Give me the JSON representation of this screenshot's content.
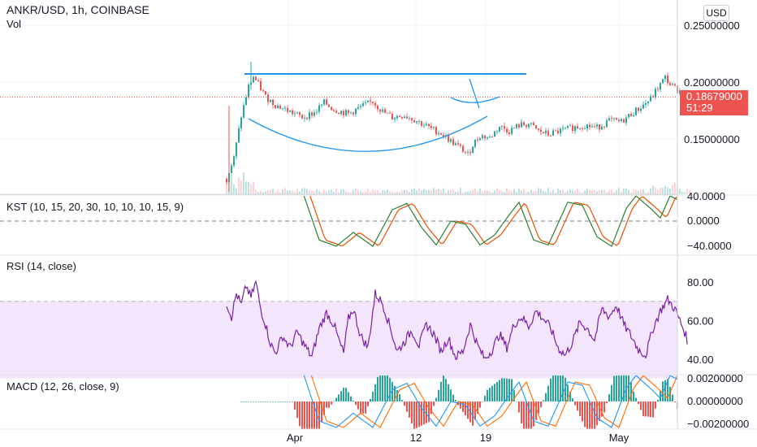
{
  "header": {
    "symbol": "ANKR/USD, 1h, COINBASE",
    "volume_label": "Vol",
    "currency": "USD"
  },
  "price_tag": {
    "price": "0.18679000",
    "countdown": "51:29"
  },
  "panes": {
    "kst": {
      "title": "KST (10, 15, 20, 30, 10, 10, 10, 15, 9)",
      "ticks": [
        "40.0000",
        "0.0000",
        "−40.0000"
      ]
    },
    "rsi": {
      "title": "RSI (14, close)",
      "ticks": [
        "80.00",
        "60.00",
        "40.00"
      ]
    },
    "macd": {
      "title": "MACD (12, 26, close, 9)",
      "ticks": [
        "0.00200000",
        "0.00000000",
        "−0.00200000"
      ]
    }
  },
  "colors": {
    "up": "#26a69a",
    "down": "#ef5350",
    "rsi": "#7b1fa2",
    "rsi_band": "#f3e5fc",
    "trendline": "#2196f3",
    "kst": "#2e7d32",
    "kst_signal": "#e65100",
    "macd": "#2196f3",
    "macd_signal": "#ff6d00"
  },
  "chart_data": [
    {
      "type": "candlestick",
      "title": "ANKR/USD, 1h, COINBASE",
      "x_ticks": [
        "Apr",
        "12",
        "19",
        "May"
      ],
      "y_ticks": [
        "0.25000000",
        "0.20000000",
        "0.15000000"
      ],
      "ylim": [
        0.11,
        0.26
      ],
      "last_price": 0.18679,
      "approx_close_path": [
        {
          "t": 0,
          "v": 0.115
        },
        {
          "t": 3,
          "v": 0.133
        },
        {
          "t": 6,
          "v": 0.17
        },
        {
          "t": 9,
          "v": 0.196
        },
        {
          "t": 11,
          "v": 0.205
        },
        {
          "t": 13,
          "v": 0.198
        },
        {
          "t": 16,
          "v": 0.187
        },
        {
          "t": 20,
          "v": 0.18
        },
        {
          "t": 25,
          "v": 0.175
        },
        {
          "t": 31,
          "v": 0.169
        },
        {
          "t": 36,
          "v": 0.173
        },
        {
          "t": 40,
          "v": 0.182
        },
        {
          "t": 44,
          "v": 0.176
        },
        {
          "t": 50,
          "v": 0.172
        },
        {
          "t": 55,
          "v": 0.178
        },
        {
          "t": 60,
          "v": 0.183
        },
        {
          "t": 64,
          "v": 0.174
        },
        {
          "t": 68,
          "v": 0.169
        },
        {
          "t": 73,
          "v": 0.171
        },
        {
          "t": 78,
          "v": 0.166
        },
        {
          "t": 83,
          "v": 0.16
        },
        {
          "t": 88,
          "v": 0.155
        },
        {
          "t": 92,
          "v": 0.148
        },
        {
          "t": 96,
          "v": 0.142
        },
        {
          "t": 99,
          "v": 0.136
        },
        {
          "t": 101,
          "v": 0.145
        },
        {
          "t": 104,
          "v": 0.153
        },
        {
          "t": 108,
          "v": 0.151
        },
        {
          "t": 112,
          "v": 0.161
        },
        {
          "t": 116,
          "v": 0.157
        },
        {
          "t": 120,
          "v": 0.162
        },
        {
          "t": 124,
          "v": 0.163
        },
        {
          "t": 128,
          "v": 0.157
        },
        {
          "t": 132,
          "v": 0.154
        },
        {
          "t": 137,
          "v": 0.157
        },
        {
          "t": 142,
          "v": 0.16
        },
        {
          "t": 147,
          "v": 0.162
        },
        {
          "t": 152,
          "v": 0.16
        },
        {
          "t": 157,
          "v": 0.166
        },
        {
          "t": 162,
          "v": 0.165
        },
        {
          "t": 166,
          "v": 0.172
        },
        {
          "t": 170,
          "v": 0.178
        },
        {
          "t": 174,
          "v": 0.185
        },
        {
          "t": 177,
          "v": 0.195
        },
        {
          "t": 180,
          "v": 0.204
        },
        {
          "t": 182,
          "v": 0.198
        },
        {
          "t": 185,
          "v": 0.193
        },
        {
          "t": 188,
          "v": 0.19
        },
        {
          "t": 190,
          "v": 0.187
        }
      ],
      "annotations": [
        {
          "type": "horizontal-resistance",
          "value": 0.2045
        },
        {
          "type": "cup-arc"
        },
        {
          "type": "handle-arc"
        }
      ]
    },
    {
      "type": "line",
      "title": "KST (10, 15, 20, 30, 10, 10, 10, 15, 9)",
      "y_ticks": [
        40,
        0,
        -40
      ],
      "approx_values": [
        {
          "t": 30,
          "v": 60
        },
        {
          "t": 38,
          "v": -30
        },
        {
          "t": 45,
          "v": -40
        },
        {
          "t": 52,
          "v": -18
        },
        {
          "t": 60,
          "v": -40
        },
        {
          "t": 68,
          "v": 18
        },
        {
          "t": 74,
          "v": 28
        },
        {
          "t": 80,
          "v": -10
        },
        {
          "t": 86,
          "v": -38
        },
        {
          "t": 92,
          "v": 0
        },
        {
          "t": 98,
          "v": -5
        },
        {
          "t": 104,
          "v": -38
        },
        {
          "t": 110,
          "v": -22
        },
        {
          "t": 116,
          "v": 10
        },
        {
          "t": 120,
          "v": 30
        },
        {
          "t": 126,
          "v": -30
        },
        {
          "t": 132,
          "v": -38
        },
        {
          "t": 140,
          "v": 30
        },
        {
          "t": 146,
          "v": 25
        },
        {
          "t": 152,
          "v": -25
        },
        {
          "t": 158,
          "v": -40
        },
        {
          "t": 164,
          "v": 20
        },
        {
          "t": 168,
          "v": 40
        },
        {
          "t": 174,
          "v": 20
        },
        {
          "t": 178,
          "v": 5
        },
        {
          "t": 182,
          "v": 40
        },
        {
          "t": 187,
          "v": 30
        }
      ]
    },
    {
      "type": "line",
      "title": "RSI (14, close)",
      "y_ticks": [
        80,
        60,
        40
      ],
      "band": [
        30,
        70
      ],
      "approx_values": [
        {
          "t": 0,
          "v": 69
        },
        {
          "t": 2,
          "v": 62
        },
        {
          "t": 4,
          "v": 74
        },
        {
          "t": 6,
          "v": 68
        },
        {
          "t": 8,
          "v": 78
        },
        {
          "t": 10,
          "v": 72
        },
        {
          "t": 12,
          "v": 80
        },
        {
          "t": 14,
          "v": 66
        },
        {
          "t": 16,
          "v": 58
        },
        {
          "t": 18,
          "v": 48
        },
        {
          "t": 20,
          "v": 43
        },
        {
          "t": 23,
          "v": 52
        },
        {
          "t": 26,
          "v": 46
        },
        {
          "t": 29,
          "v": 54
        },
        {
          "t": 32,
          "v": 47
        },
        {
          "t": 35,
          "v": 41
        },
        {
          "t": 38,
          "v": 56
        },
        {
          "t": 41,
          "v": 64
        },
        {
          "t": 44,
          "v": 58
        },
        {
          "t": 46,
          "v": 50
        },
        {
          "t": 48,
          "v": 43
        },
        {
          "t": 50,
          "v": 61
        },
        {
          "t": 52,
          "v": 66
        },
        {
          "t": 55,
          "v": 52
        },
        {
          "t": 58,
          "v": 46
        },
        {
          "t": 61,
          "v": 74
        },
        {
          "t": 64,
          "v": 69
        },
        {
          "t": 67,
          "v": 57
        },
        {
          "t": 70,
          "v": 44
        },
        {
          "t": 73,
          "v": 49
        },
        {
          "t": 76,
          "v": 55
        },
        {
          "t": 79,
          "v": 47
        },
        {
          "t": 82,
          "v": 58
        },
        {
          "t": 85,
          "v": 53
        },
        {
          "t": 88,
          "v": 44
        },
        {
          "t": 91,
          "v": 51
        },
        {
          "t": 94,
          "v": 41
        },
        {
          "t": 97,
          "v": 44
        },
        {
          "t": 100,
          "v": 58
        },
        {
          "t": 103,
          "v": 47
        },
        {
          "t": 106,
          "v": 40
        },
        {
          "t": 109,
          "v": 45
        },
        {
          "t": 112,
          "v": 53
        },
        {
          "t": 115,
          "v": 46
        },
        {
          "t": 118,
          "v": 58
        },
        {
          "t": 121,
          "v": 62
        },
        {
          "t": 124,
          "v": 57
        },
        {
          "t": 127,
          "v": 65
        },
        {
          "t": 130,
          "v": 61
        },
        {
          "t": 133,
          "v": 56
        },
        {
          "t": 136,
          "v": 46
        },
        {
          "t": 139,
          "v": 42
        },
        {
          "t": 142,
          "v": 49
        },
        {
          "t": 145,
          "v": 59
        },
        {
          "t": 148,
          "v": 56
        },
        {
          "t": 151,
          "v": 50
        },
        {
          "t": 154,
          "v": 66
        },
        {
          "t": 157,
          "v": 62
        },
        {
          "t": 160,
          "v": 68
        },
        {
          "t": 163,
          "v": 58
        },
        {
          "t": 166,
          "v": 52
        },
        {
          "t": 169,
          "v": 45
        },
        {
          "t": 172,
          "v": 42
        },
        {
          "t": 175,
          "v": 56
        },
        {
          "t": 178,
          "v": 65
        },
        {
          "t": 181,
          "v": 71
        },
        {
          "t": 184,
          "v": 66
        },
        {
          "t": 186,
          "v": 60
        },
        {
          "t": 188,
          "v": 54
        },
        {
          "t": 189,
          "v": 50
        }
      ]
    },
    {
      "type": "bar",
      "title": "MACD (12, 26, close, 9)",
      "y_ticks": [
        0.002,
        0,
        -0.002
      ],
      "notes": "histogram with MACD and signal lines"
    }
  ]
}
